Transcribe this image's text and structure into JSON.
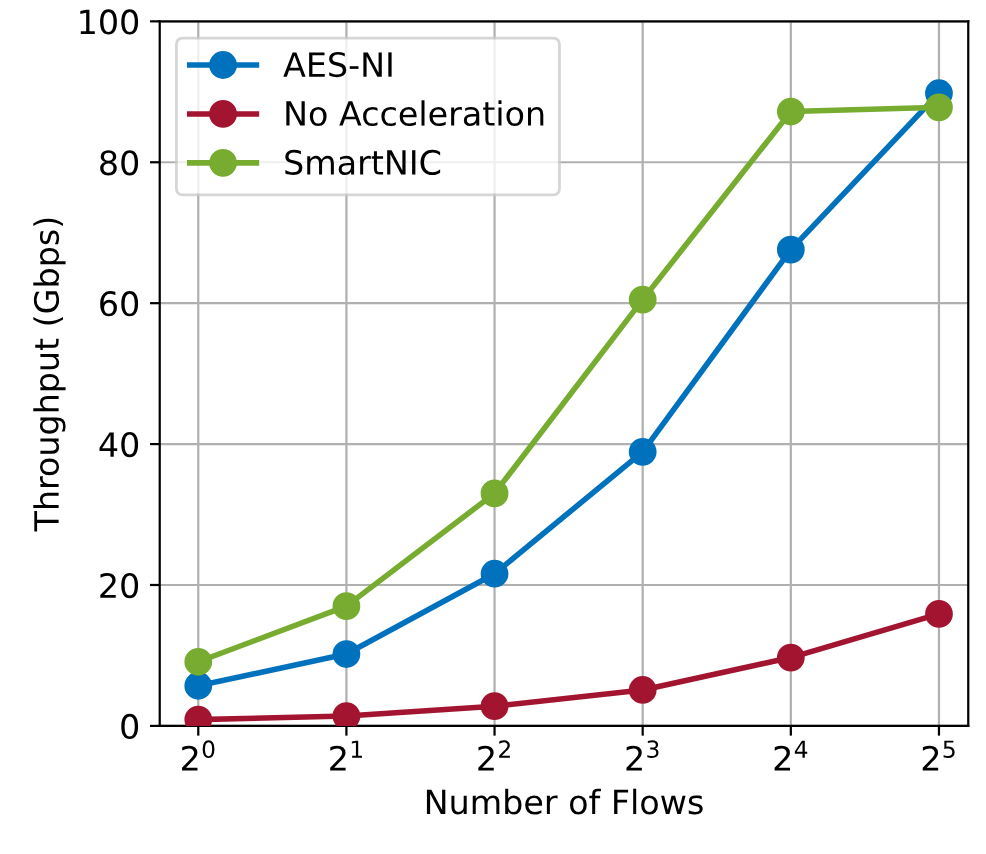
{
  "chart_data": {
    "type": "line",
    "xlabel": "Number of Flows",
    "ylabel": "Throughput (Gbps)",
    "x": [
      1,
      2,
      4,
      8,
      16,
      32
    ],
    "series": [
      {
        "name": "AES-NI",
        "color": "#0072bd",
        "values": [
          5.7,
          10.2,
          21.6,
          38.9,
          67.6,
          89.8
        ]
      },
      {
        "name": "No Acceleration",
        "color": "#a2142f",
        "values": [
          0.9,
          1.4,
          2.8,
          5.1,
          9.7,
          15.9
        ]
      },
      {
        "name": "SmartNIC",
        "color": "#77ac30",
        "values": [
          9.1,
          17,
          33,
          60.5,
          87.2,
          87.8
        ]
      }
    ],
    "log": "x",
    "xlim": [
      0.835,
      36.7
    ],
    "ylim": [
      0,
      100
    ],
    "xticks": [
      {
        "value": 1,
        "label": "2$^{0}$"
      },
      {
        "value": 2,
        "label": "2$^{1}$"
      },
      {
        "value": 4,
        "label": "2$^{2}$"
      },
      {
        "value": 8,
        "label": "2$^{3}$"
      },
      {
        "value": 16,
        "label": "2$^{4}$"
      },
      {
        "value": 32,
        "label": "2$^{5}$"
      }
    ],
    "yticks": [
      0,
      20,
      40,
      60,
      80,
      100
    ],
    "grid": true,
    "legend": "top left",
    "marker": "circle",
    "line_style": "solid"
  }
}
